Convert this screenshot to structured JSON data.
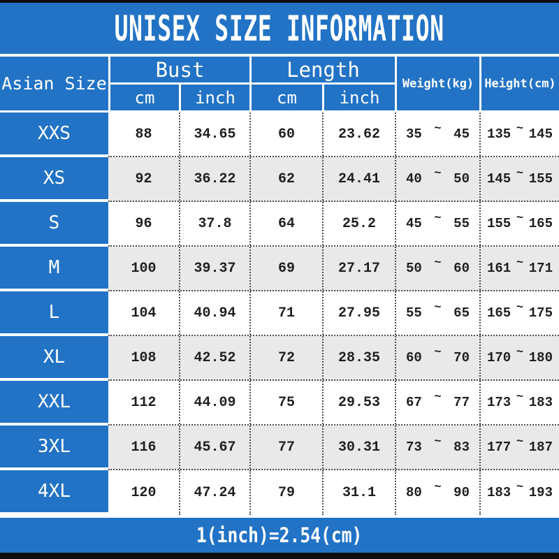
{
  "title": "UNISEX SIZE INFORMATION",
  "footer_note": "1(inch)=2.54(cm)",
  "symbols": {
    "tilde": "~"
  },
  "colors": {
    "accent_blue": "#2273c5",
    "stripe_gray": "#e9e9e9",
    "edge_bar": "#0e0e0e"
  },
  "header": {
    "size_col": "Asian Size",
    "bust": "Bust",
    "length": "Length",
    "cm": "cm",
    "inch": "inch",
    "weight": "Weight(kg)",
    "height": "Height(cm)"
  },
  "chart_data": {
    "type": "table",
    "title": "UNISEX SIZE INFORMATION",
    "columns": [
      "Asian Size",
      "Bust cm",
      "Bust inch",
      "Length cm",
      "Length inch",
      "Weight(kg) min",
      "Weight(kg) max",
      "Height(cm) min",
      "Height(cm) max"
    ],
    "rows": [
      {
        "size": "XXS",
        "bust_cm": "88",
        "bust_inch": "34.65",
        "length_cm": "60",
        "length_inch": "23.62",
        "weight_min": "35",
        "weight_max": "45",
        "height_min": "135",
        "height_max": "145"
      },
      {
        "size": "XS",
        "bust_cm": "92",
        "bust_inch": "36.22",
        "length_cm": "62",
        "length_inch": "24.41",
        "weight_min": "40",
        "weight_max": "50",
        "height_min": "145",
        "height_max": "155"
      },
      {
        "size": "S",
        "bust_cm": "96",
        "bust_inch": "37.8",
        "length_cm": "64",
        "length_inch": "25.2",
        "weight_min": "45",
        "weight_max": "55",
        "height_min": "155",
        "height_max": "165"
      },
      {
        "size": "M",
        "bust_cm": "100",
        "bust_inch": "39.37",
        "length_cm": "69",
        "length_inch": "27.17",
        "weight_min": "50",
        "weight_max": "60",
        "height_min": "161",
        "height_max": "171"
      },
      {
        "size": "L",
        "bust_cm": "104",
        "bust_inch": "40.94",
        "length_cm": "71",
        "length_inch": "27.95",
        "weight_min": "55",
        "weight_max": "65",
        "height_min": "165",
        "height_max": "175"
      },
      {
        "size": "XL",
        "bust_cm": "108",
        "bust_inch": "42.52",
        "length_cm": "72",
        "length_inch": "28.35",
        "weight_min": "60",
        "weight_max": "70",
        "height_min": "170",
        "height_max": "180"
      },
      {
        "size": "XXL",
        "bust_cm": "112",
        "bust_inch": "44.09",
        "length_cm": "75",
        "length_inch": "29.53",
        "weight_min": "67",
        "weight_max": "77",
        "height_min": "173",
        "height_max": "183"
      },
      {
        "size": "3XL",
        "bust_cm": "116",
        "bust_inch": "45.67",
        "length_cm": "77",
        "length_inch": "30.31",
        "weight_min": "73",
        "weight_max": "83",
        "height_min": "177",
        "height_max": "187"
      },
      {
        "size": "4XL",
        "bust_cm": "120",
        "bust_inch": "47.24",
        "length_cm": "79",
        "length_inch": "31.1",
        "weight_min": "80",
        "weight_max": "90",
        "height_min": "183",
        "height_max": "193"
      }
    ]
  }
}
